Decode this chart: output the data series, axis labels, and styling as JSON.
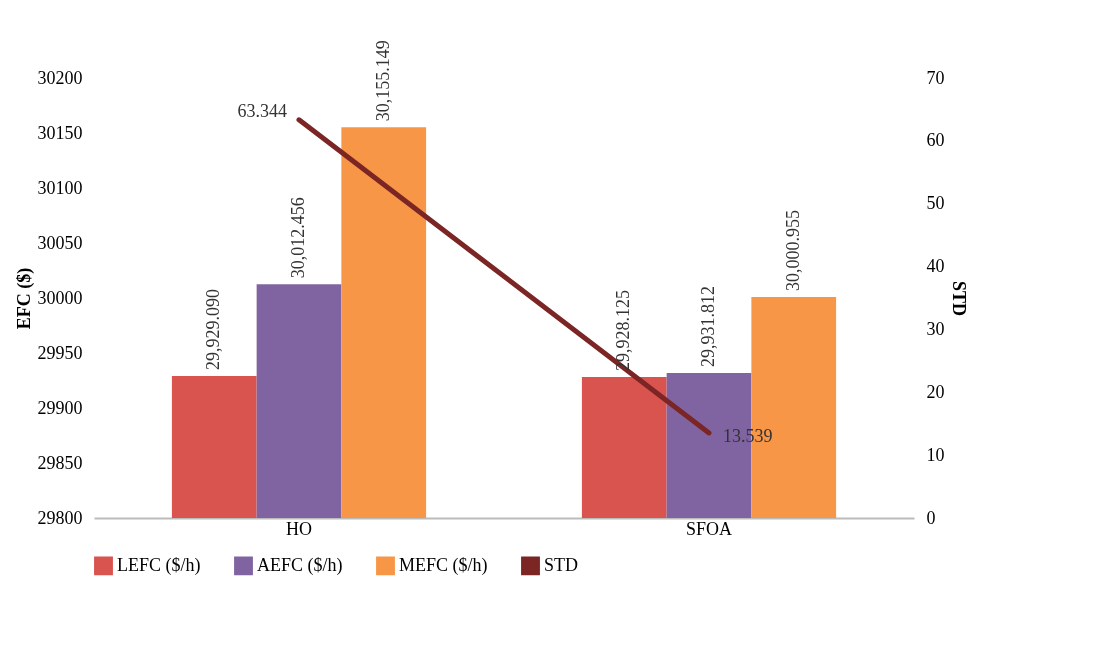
{
  "chart_data": {
    "type": "bar",
    "categories": [
      "HO",
      "SFOA"
    ],
    "ylabel": "EFC ($)",
    "y2label": "STD",
    "ylim": [
      29800,
      30200
    ],
    "yticks": [
      29800,
      29850,
      29900,
      29950,
      30000,
      30050,
      30100,
      30150,
      30200
    ],
    "y2lim": [
      0,
      70
    ],
    "y2ticks": [
      0,
      10,
      20,
      30,
      40,
      50,
      60,
      70
    ],
    "grid": false,
    "legend": "bottom",
    "series": [
      {
        "name": "LEFC ($/h)",
        "color": "#d9534f",
        "values": [
          29929.09,
          29928.125
        ],
        "value_labels": [
          "29,929.090",
          "29,928.125"
        ]
      },
      {
        "name": "AEFC ($/h)",
        "color": "#8064a2",
        "values": [
          30012.456,
          29931.812
        ],
        "value_labels": [
          "30,012.456",
          "29,931.812"
        ]
      },
      {
        "name": "MEFC ($/h)",
        "color": "#f79646",
        "values": [
          30155.149,
          30000.955
        ],
        "value_labels": [
          "30,155.149",
          "30,000.955"
        ]
      },
      {
        "name": "STD",
        "type": "line",
        "axis": "y2",
        "color": "#7b2525",
        "values": [
          63.344,
          13.539
        ],
        "value_labels": [
          "63.344",
          "13.539"
        ]
      }
    ]
  }
}
